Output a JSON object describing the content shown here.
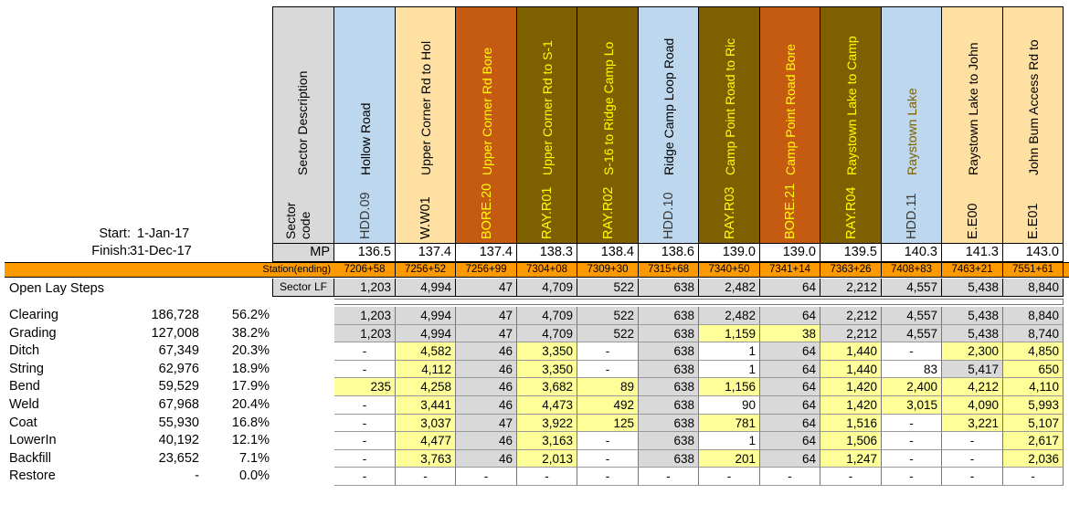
{
  "start_label": "Start:",
  "start_value": "1-Jan-17",
  "finish_label": "Finish:",
  "finish_value": "31-Dec-17",
  "row_header_desc": "Sector Description",
  "row_header_code_line1": "Sector",
  "row_header_code_line2": "code",
  "mp_label": "MP",
  "station_label": "Station(ending)",
  "sector_lf_label": "Sector LF",
  "open_lay_label": "Open Lay Steps",
  "colors": {
    "blue": "#bdd7ee",
    "tan": "#ffe0a3",
    "orange": "#c55a11",
    "brown": "#7f6000",
    "station_bar": "#ff9900",
    "yellow_cell": "#ffff99",
    "gray_cell": "#d9d9d9"
  },
  "sectors": [
    {
      "desc": "Hollow Road",
      "code": "HDD.09",
      "mp": "136.5",
      "station": "7206+58",
      "lf": "1,203",
      "style": "blue"
    },
    {
      "desc": "Upper Corner Rd to Hol",
      "code": "W.W01",
      "mp": "137.4",
      "station": "7256+52",
      "lf": "4,994",
      "style": "tan"
    },
    {
      "desc": "Upper Corner Rd Bore",
      "code": "BORE.20",
      "mp": "137.4",
      "station": "7256+99",
      "lf": "47",
      "style": "orange"
    },
    {
      "desc": "Upper Corner Rd to S-1",
      "code": "RAY.R01",
      "mp": "138.3",
      "station": "7304+08",
      "lf": "4,709",
      "style": "brown"
    },
    {
      "desc": "S-16 to Ridge Camp Lo",
      "code": "RAY.R02",
      "mp": "138.4",
      "station": "7309+30",
      "lf": "522",
      "style": "brown"
    },
    {
      "desc": "Ridge Camp Loop Road",
      "code": "HDD.10",
      "mp": "138.6",
      "station": "7315+68",
      "lf": "638",
      "style": "blue"
    },
    {
      "desc": "Camp Point Road to Ric",
      "code": "RAY.R03",
      "mp": "139.0",
      "station": "7340+50",
      "lf": "2,482",
      "style": "brown"
    },
    {
      "desc": "Camp Point Road Bore",
      "code": "BORE.21",
      "mp": "139.0",
      "station": "7341+14",
      "lf": "64",
      "style": "orange"
    },
    {
      "desc": "Raystown Lake to Camp",
      "code": "RAY.R04",
      "mp": "139.5",
      "station": "7363+26",
      "lf": "2,212",
      "style": "brown"
    },
    {
      "desc": "Raystown Lake",
      "code": "HDD.11",
      "mp": "140.3",
      "station": "7408+83",
      "lf": "4,557",
      "style": "blue"
    },
    {
      "desc": "Raystown Lake to John",
      "code": "E.E00",
      "mp": "141.3",
      "station": "7463+21",
      "lf": "5,438",
      "style": "tan"
    },
    {
      "desc": "John Bum Access Rd to",
      "code": "E.E01",
      "mp": "143.0",
      "station": "7551+61",
      "lf": "8,840",
      "style": "tan"
    }
  ],
  "steps": [
    {
      "name": "Clearing",
      "total": "186,728",
      "pct": "56.2%",
      "values": [
        "1,203",
        "4,994",
        "47",
        "4,709",
        "522",
        "638",
        "2,482",
        "64",
        "2,212",
        "4,557",
        "5,438",
        "8,840"
      ],
      "fills": [
        "g",
        "g",
        "g",
        "g",
        "g",
        "g",
        "g",
        "g",
        "g",
        "g",
        "g",
        "g"
      ]
    },
    {
      "name": "Grading",
      "total": "127,008",
      "pct": "38.2%",
      "values": [
        "1,203",
        "4,994",
        "47",
        "4,709",
        "522",
        "638",
        "1,159",
        "38",
        "2,212",
        "4,557",
        "5,438",
        "8,740"
      ],
      "fills": [
        "g",
        "g",
        "g",
        "g",
        "g",
        "g",
        "y",
        "y",
        "g",
        "g",
        "g",
        "g"
      ]
    },
    {
      "name": "Ditch",
      "total": "67,349",
      "pct": "20.3%",
      "values": [
        "-",
        "4,582",
        "46",
        "3,350",
        "-",
        "638",
        "1",
        "64",
        "1,440",
        "-",
        "2,300",
        "4,850"
      ],
      "fills": [
        "w",
        "y",
        "g",
        "y",
        "w",
        "g",
        "w",
        "g",
        "y",
        "w",
        "y",
        "y"
      ]
    },
    {
      "name": "String",
      "total": "62,976",
      "pct": "18.9%",
      "values": [
        "-",
        "4,112",
        "46",
        "3,350",
        "-",
        "638",
        "1",
        "64",
        "1,440",
        "83",
        "5,417",
        "650"
      ],
      "fills": [
        "w",
        "y",
        "g",
        "y",
        "w",
        "g",
        "w",
        "g",
        "y",
        "w",
        "g",
        "y"
      ]
    },
    {
      "name": "Bend",
      "total": "59,529",
      "pct": "17.9%",
      "values": [
        "235",
        "4,258",
        "46",
        "3,682",
        "89",
        "638",
        "1,156",
        "64",
        "1,420",
        "2,400",
        "4,212",
        "4,110"
      ],
      "fills": [
        "y",
        "y",
        "g",
        "y",
        "y",
        "g",
        "y",
        "g",
        "y",
        "y",
        "y",
        "y"
      ]
    },
    {
      "name": "Weld",
      "total": "67,968",
      "pct": "20.4%",
      "values": [
        "-",
        "3,441",
        "46",
        "4,473",
        "492",
        "638",
        "90",
        "64",
        "1,420",
        "3,015",
        "4,090",
        "5,993"
      ],
      "fills": [
        "w",
        "y",
        "g",
        "y",
        "y",
        "g",
        "w",
        "g",
        "y",
        "y",
        "y",
        "y"
      ]
    },
    {
      "name": "Coat",
      "total": "55,930",
      "pct": "16.8%",
      "values": [
        "-",
        "3,037",
        "47",
        "3,922",
        "125",
        "638",
        "781",
        "64",
        "1,516",
        "-",
        "3,221",
        "5,107"
      ],
      "fills": [
        "w",
        "y",
        "g",
        "y",
        "y",
        "g",
        "y",
        "g",
        "y",
        "w",
        "y",
        "y"
      ]
    },
    {
      "name": "LowerIn",
      "total": "40,192",
      "pct": "12.1%",
      "values": [
        "-",
        "4,477",
        "46",
        "3,163",
        "-",
        "638",
        "1",
        "64",
        "1,506",
        "-",
        "-",
        "2,617"
      ],
      "fills": [
        "w",
        "y",
        "g",
        "y",
        "w",
        "g",
        "w",
        "g",
        "y",
        "w",
        "w",
        "y"
      ]
    },
    {
      "name": "Backfill",
      "total": "23,652",
      "pct": "7.1%",
      "values": [
        "-",
        "3,763",
        "46",
        "2,013",
        "-",
        "638",
        "201",
        "64",
        "1,247",
        "-",
        "-",
        "2,036"
      ],
      "fills": [
        "w",
        "y",
        "g",
        "y",
        "w",
        "g",
        "y",
        "g",
        "y",
        "w",
        "w",
        "y"
      ]
    },
    {
      "name": "Restore",
      "total": "-",
      "pct": "0.0%",
      "values": [
        "-",
        "-",
        "-",
        "-",
        "-",
        "-",
        "-",
        "-",
        "-",
        "-",
        "-",
        "-"
      ],
      "fills": [
        "w",
        "w",
        "w",
        "w",
        "w",
        "w",
        "w",
        "w",
        "w",
        "w",
        "w",
        "w"
      ]
    }
  ]
}
